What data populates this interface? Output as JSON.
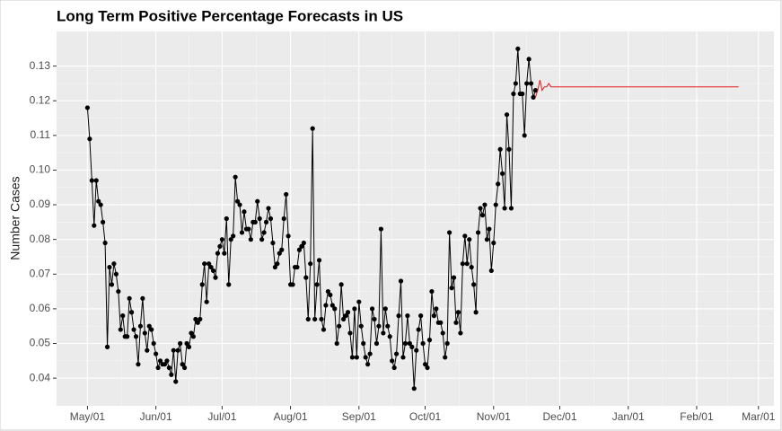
{
  "chart_data": {
    "type": "line",
    "title": "Long Term Positive Percentage Forecasts in US",
    "ylabel": "Number Cases",
    "xlim": [
      -14,
      311
    ],
    "ylim": [
      0.032,
      0.14
    ],
    "grid": true,
    "xticks": [
      {
        "value": 0,
        "label": "May/01"
      },
      {
        "value": 31,
        "label": "Jun/01"
      },
      {
        "value": 61,
        "label": "Jul/01"
      },
      {
        "value": 92,
        "label": "Aug/01"
      },
      {
        "value": 123,
        "label": "Sep/01"
      },
      {
        "value": 153,
        "label": "Oct/01"
      },
      {
        "value": 184,
        "label": "Nov/01"
      },
      {
        "value": 214,
        "label": "Dec/01"
      },
      {
        "value": 245,
        "label": "Jan/01"
      },
      {
        "value": 276,
        "label": "Feb/01"
      },
      {
        "value": 304,
        "label": "Mar/01"
      }
    ],
    "yticks": [
      0.04,
      0.05,
      0.06,
      0.07,
      0.08,
      0.09,
      {
        "value": 0.1,
        "label": "0.10"
      },
      0.11,
      0.12,
      0.13
    ],
    "series": [
      {
        "color": "#000000",
        "markers": true,
        "x": [
          0,
          1,
          2,
          3,
          4,
          5,
          6,
          7,
          8,
          9,
          10,
          11,
          12,
          13,
          14,
          15,
          16,
          17,
          18,
          19,
          20,
          21,
          22,
          23,
          24,
          25,
          26,
          27,
          28,
          29,
          30,
          31,
          32,
          33,
          34,
          35,
          36,
          37,
          38,
          39,
          40,
          41,
          42,
          43,
          44,
          45,
          46,
          47,
          48,
          49,
          50,
          51,
          52,
          53,
          54,
          55,
          56,
          57,
          58,
          59,
          60,
          61,
          62,
          63,
          64,
          65,
          66,
          67,
          68,
          69,
          70,
          71,
          72,
          73,
          74,
          75,
          76,
          77,
          78,
          79,
          80,
          81,
          82,
          83,
          84,
          85,
          86,
          87,
          88,
          89,
          90,
          91,
          92,
          93,
          94,
          95,
          96,
          97,
          98,
          99,
          100,
          101,
          102,
          103,
          104,
          105,
          106,
          107,
          108,
          109,
          110,
          111,
          112,
          113,
          114,
          115,
          116,
          117,
          118,
          119,
          120,
          121,
          122,
          123,
          124,
          125,
          126,
          127,
          128,
          129,
          130,
          131,
          132,
          133,
          134,
          135,
          136,
          137,
          138,
          139,
          140,
          141,
          142,
          143,
          144,
          145,
          146,
          147,
          148,
          149,
          150,
          151,
          152,
          153,
          154,
          155,
          156,
          157,
          158,
          159,
          160,
          161,
          162,
          163,
          164,
          165,
          166,
          167,
          168,
          169,
          170,
          171,
          172,
          173,
          174,
          175,
          176,
          177,
          178,
          179,
          180,
          181,
          182,
          183,
          184,
          185,
          186,
          187,
          188,
          189,
          190,
          191,
          192,
          193,
          194,
          195,
          196,
          197,
          198,
          199,
          200,
          201,
          202,
          203
        ],
        "values": [
          0.118,
          0.109,
          0.097,
          0.084,
          0.097,
          0.091,
          0.09,
          0.085,
          0.079,
          0.049,
          0.072,
          0.067,
          0.073,
          0.07,
          0.065,
          0.054,
          0.058,
          0.052,
          0.052,
          0.063,
          0.059,
          0.054,
          0.052,
          0.044,
          0.055,
          0.063,
          0.053,
          0.048,
          0.055,
          0.054,
          0.05,
          0.047,
          0.043,
          0.045,
          0.044,
          0.044,
          0.045,
          0.043,
          0.041,
          0.048,
          0.039,
          0.048,
          0.05,
          0.044,
          0.043,
          0.05,
          0.049,
          0.053,
          0.052,
          0.057,
          0.056,
          0.057,
          0.067,
          0.073,
          0.062,
          0.073,
          0.072,
          0.071,
          0.069,
          0.076,
          0.078,
          0.08,
          0.076,
          0.086,
          0.067,
          0.08,
          0.081,
          0.098,
          0.091,
          0.09,
          0.082,
          0.088,
          0.083,
          0.083,
          0.08,
          0.085,
          0.085,
          0.091,
          0.086,
          0.08,
          0.082,
          0.085,
          0.089,
          0.086,
          0.079,
          0.072,
          0.073,
          0.076,
          0.077,
          0.086,
          0.093,
          0.081,
          0.067,
          0.067,
          0.072,
          0.072,
          0.077,
          0.078,
          0.079,
          0.069,
          0.057,
          0.073,
          0.112,
          0.057,
          0.067,
          0.074,
          0.057,
          0.054,
          0.061,
          0.065,
          0.064,
          0.061,
          0.06,
          0.05,
          0.055,
          0.067,
          0.057,
          0.058,
          0.059,
          0.053,
          0.046,
          0.06,
          0.046,
          0.062,
          0.055,
          0.05,
          0.046,
          0.044,
          0.047,
          0.06,
          0.057,
          0.05,
          0.055,
          0.083,
          0.053,
          0.06,
          0.055,
          0.052,
          0.045,
          0.043,
          0.047,
          0.058,
          0.068,
          0.046,
          0.05,
          0.058,
          0.05,
          0.049,
          0.037,
          0.048,
          0.054,
          0.058,
          0.05,
          0.044,
          0.043,
          0.051,
          0.065,
          0.058,
          0.06,
          0.056,
          0.056,
          0.053,
          0.046,
          0.05,
          0.082,
          0.066,
          0.069,
          0.056,
          0.059,
          0.053,
          0.073,
          0.081,
          0.073,
          0.08,
          0.072,
          0.067,
          0.059,
          0.082,
          0.089,
          0.087,
          0.09,
          0.08,
          0.083,
          0.071,
          0.079,
          0.09,
          0.096,
          0.106,
          0.099,
          0.089,
          0.116,
          0.106,
          0.089,
          0.122,
          0.125,
          0.135,
          0.122,
          0.122,
          0.11,
          0.125,
          0.132,
          0.125,
          0.121,
          0.123
        ]
      },
      {
        "color": "#e41a1c",
        "markers": false,
        "x": [
          203,
          204,
          205,
          206,
          207,
          208,
          209,
          210,
          211,
          295
        ],
        "values": [
          0.121,
          0.123,
          0.126,
          0.123,
          0.124,
          0.124,
          0.125,
          0.124,
          0.124,
          0.124
        ]
      }
    ]
  }
}
